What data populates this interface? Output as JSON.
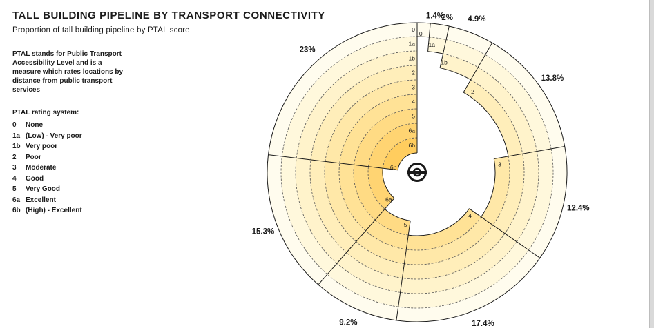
{
  "title": "TALL BUILDING PIPELINE BY TRANSPORT CONNECTIVITY",
  "subtitle": "Proportion of tall building pipeline by PTAL score",
  "description": "PTAL stands for Public Transport Accessibility Level and is a measure which rates locations by distance from public transport services",
  "legend_heading": "PTAL rating system:",
  "ptal_scale": [
    {
      "code": "0",
      "label": "None"
    },
    {
      "code": "1a",
      "label": "(Low) - Very poor"
    },
    {
      "code": "1b",
      "label": "Very poor"
    },
    {
      "code": "2",
      "label": "Poor"
    },
    {
      "code": "3",
      "label": "Moderate"
    },
    {
      "code": "4",
      "label": "Good"
    },
    {
      "code": "5",
      "label": "Very Good"
    },
    {
      "code": "6a",
      "label": "Excellent"
    },
    {
      "code": "6b",
      "label": "(High) - Excellent"
    }
  ],
  "icon": "transport-roundel-icon",
  "colors": {
    "ring_fills": [
      "#fffcee",
      "#fff8dc",
      "#fff3cb",
      "#ffeeba",
      "#ffe8a8",
      "#ffe296",
      "#ffdb84",
      "#ffd472",
      "#ffcd5e"
    ],
    "outline": "#1a1a1a",
    "grid": "#555555"
  },
  "chart_data": {
    "type": "radial-bar",
    "title": "TALL BUILDING PIPELINE BY TRANSPORT CONNECTIVITY",
    "subtitle": "Proportion of tall building pipeline by PTAL score",
    "levels": [
      "0",
      "1a",
      "1b",
      "2",
      "3",
      "4",
      "5",
      "6a",
      "6b"
    ],
    "categories": [
      "0",
      "1a",
      "1b",
      "2",
      "3",
      "4",
      "5",
      "6a",
      "6b"
    ],
    "values": [
      1.4,
      2,
      4.9,
      13.8,
      12.4,
      17.4,
      9.2,
      15.3,
      23
    ],
    "labels": [
      "1.4%",
      "2%",
      "4.9%",
      "13.8%",
      "12.4%",
      "17.4%",
      "9.2%",
      "15.3%",
      "23%"
    ],
    "unit": "%"
  }
}
